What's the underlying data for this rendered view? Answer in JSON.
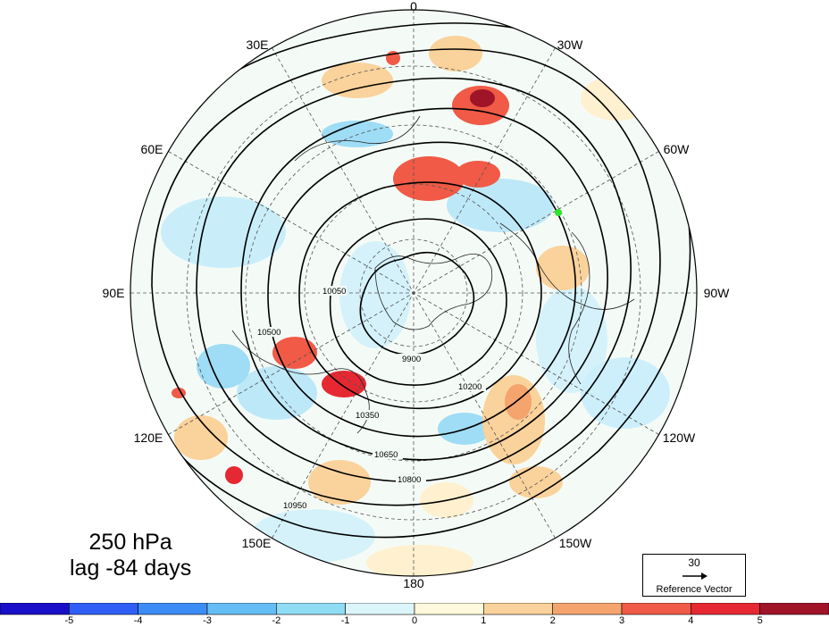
{
  "title": {
    "line1": "250 hPa",
    "line2": "lag -84 days"
  },
  "longitude_labels": [
    "0",
    "30W",
    "60W",
    "90W",
    "120W",
    "150W",
    "180",
    "150E",
    "120E",
    "90E",
    "60E",
    "30E"
  ],
  "contour_labels": [
    "9900",
    "10050",
    "10200",
    "10350",
    "10500",
    "10650",
    "10800",
    "10950"
  ],
  "reference_vector": {
    "magnitude": "30",
    "label": "Reference Vector"
  },
  "colorbar": {
    "ticks": [
      "-5",
      "-4",
      "-3",
      "-2",
      "-1",
      "0",
      "1",
      "2",
      "3",
      "4",
      "5"
    ],
    "colors": [
      "#1a0fc8",
      "#2f5ef5",
      "#3c8cf5",
      "#64bef5",
      "#8fdcf5",
      "#dcf5fa",
      "#fff8dc",
      "#fad29b",
      "#f5a46e",
      "#f05a46",
      "#e62832",
      "#a01428"
    ]
  },
  "marker_color": "#28e628"
}
